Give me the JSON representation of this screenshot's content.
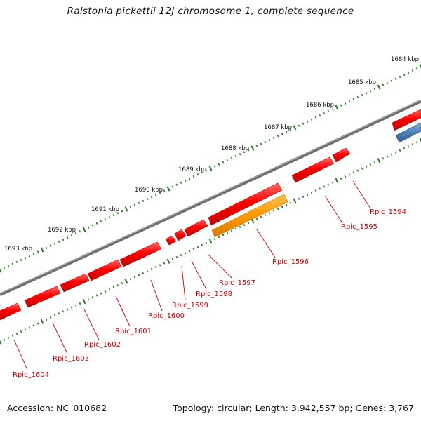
{
  "title": "Ralstonia pickettii 12J chromosome 1, complete sequence",
  "accession": "Accession: NC_010682",
  "summary": "Topology: circular; Length: 3,942,557 bp; Genes: 3,767",
  "colors": {
    "backbone": "#7a7a7a",
    "gene_cds": "#ff0000",
    "gene_highlight": "#ff9900",
    "gene_other": "#4a7fb5",
    "ticks": "#1f7a1f",
    "label": "#cc0000"
  },
  "scale_labels": [
    "1684 kbp",
    "1685 kbp",
    "1686 kbp",
    "1687 kbp",
    "1688 kbp",
    "1689 kbp",
    "1690 kbp",
    "1691 kbp",
    "1692 kbp",
    "1693 kbp"
  ],
  "genes": [
    {
      "id": "Rpic_1594",
      "color": "gene_cds"
    },
    {
      "id": "Rpic_1595",
      "color": "gene_cds"
    },
    {
      "id": "Rpic_1596",
      "color": "gene_highlight"
    },
    {
      "id": "Rpic_1597",
      "color": "gene_cds"
    },
    {
      "id": "Rpic_1598",
      "color": "gene_cds"
    },
    {
      "id": "Rpic_1599",
      "color": "gene_cds"
    },
    {
      "id": "Rpic_1600",
      "color": "gene_cds"
    },
    {
      "id": "Rpic_1601",
      "color": "gene_cds"
    },
    {
      "id": "Rpic_1602",
      "color": "gene_cds"
    },
    {
      "id": "Rpic_1603",
      "color": "gene_cds"
    },
    {
      "id": "Rpic_1604",
      "color": "gene_cds"
    }
  ]
}
